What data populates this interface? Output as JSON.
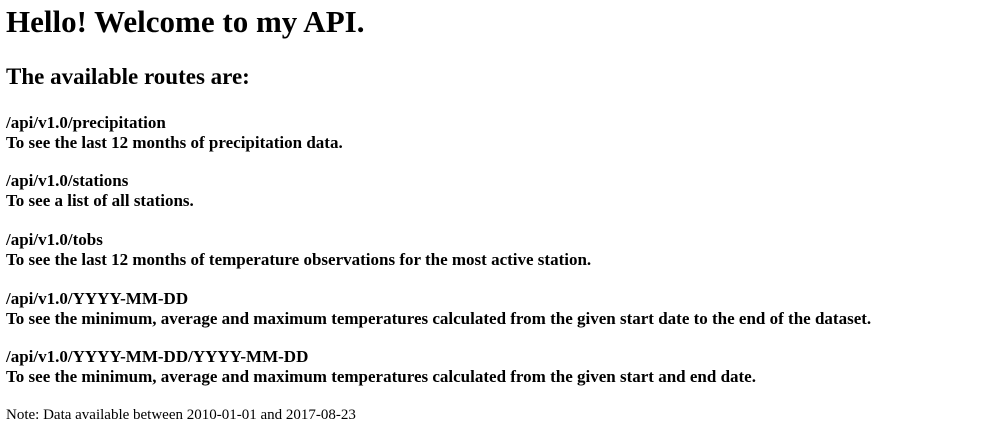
{
  "title": "Hello! Welcome to my API.",
  "subtitle": "The available routes are:",
  "routes": [
    {
      "path": "/api/v1.0/precipitation",
      "description": "To see the last 12 months of precipitation data."
    },
    {
      "path": "/api/v1.0/stations",
      "description": "To see a list of all stations."
    },
    {
      "path": "/api/v1.0/tobs",
      "description": "To see the last 12 months of temperature observations for the most active station."
    },
    {
      "path": "/api/v1.0/YYYY-MM-DD",
      "description": "To see the minimum, average and maximum temperatures calculated from the given start date to the end of the dataset."
    },
    {
      "path": "/api/v1.0/YYYY-MM-DD/YYYY-MM-DD",
      "description": "To see the minimum, average and maximum temperatures calculated from the given start and end date."
    }
  ],
  "note": "Note: Data available between 2010-01-01 and 2017-08-23"
}
